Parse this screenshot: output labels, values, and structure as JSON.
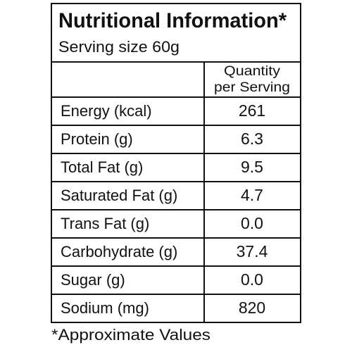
{
  "header": {
    "title": "Nutritional Information*",
    "serving": "Serving size 60g"
  },
  "table": {
    "column_header": [
      "Quantity",
      "per Serving"
    ],
    "rows": [
      [
        "Energy (kcal)",
        "261"
      ],
      [
        "Protein (g)",
        "6.3"
      ],
      [
        "Total Fat (g)",
        "9.5"
      ],
      [
        "Saturated Fat (g)",
        "4.7"
      ],
      [
        "Trans Fat (g)",
        "0.0"
      ],
      [
        "Carbohydrate (g)",
        "37.4"
      ],
      [
        "Sugar (g)",
        "0.0"
      ],
      [
        "Sodium (mg)",
        "820"
      ]
    ]
  },
  "footnote": "*Approximate Values"
}
